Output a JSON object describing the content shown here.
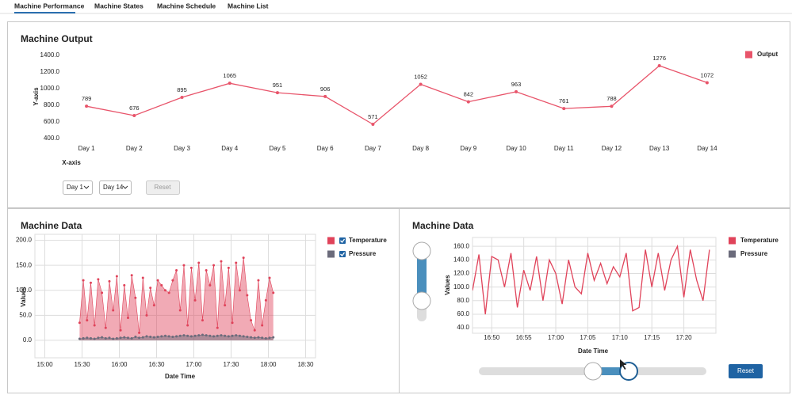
{
  "tabs": [
    "Machine Performance",
    "Machine States",
    "Machine Schedule",
    "Machine List"
  ],
  "controls": {
    "start": "Day 1",
    "end": "Day 14",
    "reset": "Reset",
    "data_reset": "Reset"
  },
  "chart_data": [
    {
      "type": "line",
      "title": "Machine Output",
      "x_label": "X-axis",
      "y_label": "Y-axis",
      "categories": [
        "Day 1",
        "Day 2",
        "Day 3",
        "Day 4",
        "Day 5",
        "Day 6",
        "Day 7",
        "Day 8",
        "Day 9",
        "Day 10",
        "Day 11",
        "Day 12",
        "Day 13",
        "Day 14"
      ],
      "series": [
        {
          "name": "Output",
          "color": "#e8546a",
          "values": [
            789,
            676,
            895,
            1065,
            951,
            906,
            571,
            1052,
            842,
            963,
            761,
            788,
            1276,
            1072
          ]
        }
      ],
      "ylim": [
        400,
        1400
      ],
      "yticks": [
        {
          "value": 400,
          "label": "400.0"
        },
        {
          "value": 600,
          "label": "600.0"
        },
        {
          "value": 800,
          "label": "800.0"
        },
        {
          "value": 1000,
          "label": "1000.0"
        },
        {
          "value": 1200,
          "label": "1200.0"
        },
        {
          "value": 1400,
          "label": "1400.0"
        }
      ],
      "grid": false,
      "data_labels": true
    },
    {
      "type": "area",
      "title": "Machine Data",
      "x_label": "Date Time",
      "y_label": "Values",
      "x": [
        "15:28",
        "15:31",
        "15:34",
        "15:37",
        "15:40",
        "15:43",
        "15:46",
        "15:49",
        "15:52",
        "15:55",
        "15:58",
        "16:01",
        "16:04",
        "16:07",
        "16:10",
        "16:13",
        "16:16",
        "16:19",
        "16:22",
        "16:25",
        "16:28",
        "16:31",
        "16:34",
        "16:37",
        "16:40",
        "16:43",
        "16:46",
        "16:49",
        "16:52",
        "16:55",
        "16:58",
        "17:01",
        "17:04",
        "17:07",
        "17:10",
        "17:13",
        "17:16",
        "17:19",
        "17:22",
        "17:25",
        "17:28",
        "17:31",
        "17:34",
        "17:37",
        "17:40",
        "17:43",
        "17:46",
        "17:49",
        "17:52",
        "17:55",
        "17:58",
        "18:01",
        "18:04"
      ],
      "series": [
        {
          "name": "Temperature",
          "color": "#e0435a",
          "values": [
            35,
            120,
            40,
            115,
            30,
            122,
            95,
            25,
            118,
            60,
            128,
            20,
            110,
            45,
            130,
            85,
            15,
            125,
            50,
            105,
            70,
            120,
            110,
            100,
            95,
            120,
            140,
            60,
            150,
            30,
            145,
            80,
            155,
            40,
            140,
            110,
            150,
            25,
            158,
            70,
            145,
            35,
            155,
            100,
            165,
            90,
            40,
            20,
            120,
            30,
            80,
            125,
            95
          ]
        },
        {
          "name": "Pressure",
          "color": "#6b6b7b",
          "values": [
            3,
            4,
            5,
            4,
            3,
            5,
            6,
            4,
            5,
            3,
            4,
            5,
            6,
            5,
            4,
            7,
            5,
            6,
            8,
            7,
            6,
            7,
            8,
            9,
            8,
            7,
            8,
            9,
            10,
            9,
            8,
            9,
            10,
            11,
            10,
            9,
            8,
            9,
            10,
            9,
            8,
            9,
            10,
            9,
            8,
            7,
            6,
            5,
            6,
            5,
            4,
            5,
            6
          ]
        }
      ],
      "xlim": [
        "14:52",
        "18:38"
      ],
      "xticks": [
        "15:00",
        "15:30",
        "16:00",
        "16:30",
        "17:00",
        "17:30",
        "18:00",
        "18:30"
      ],
      "ylim": [
        -35,
        212
      ],
      "yticks": [
        {
          "value": 0,
          "label": "0.0"
        },
        {
          "value": 50,
          "label": "50.0"
        },
        {
          "value": 100,
          "label": "100.0"
        },
        {
          "value": 150,
          "label": "150.0"
        },
        {
          "value": 200,
          "label": "200.0"
        }
      ],
      "grid": true
    },
    {
      "type": "line",
      "title": "Machine Data",
      "x_label": "Date Time",
      "y_label": "Values",
      "x": [
        "16:47",
        "16:48",
        "16:49",
        "16:50",
        "16:51",
        "16:52",
        "16:53",
        "16:54",
        "16:55",
        "16:56",
        "16:57",
        "16:58",
        "16:59",
        "17:00",
        "17:01",
        "17:02",
        "17:03",
        "17:04",
        "17:05",
        "17:06",
        "17:07",
        "17:08",
        "17:09",
        "17:10",
        "17:11",
        "17:12",
        "17:13",
        "17:14",
        "17:15",
        "17:16",
        "17:17",
        "17:18",
        "17:19",
        "17:20",
        "17:21",
        "17:22",
        "17:23",
        "17:24"
      ],
      "series": [
        {
          "name": "Temperature",
          "color": "#e0435a",
          "values": [
            95,
            148,
            60,
            145,
            140,
            100,
            150,
            70,
            125,
            95,
            145,
            80,
            140,
            120,
            75,
            140,
            100,
            90,
            150,
            110,
            135,
            105,
            130,
            115,
            150,
            65,
            70,
            155,
            100,
            150,
            95,
            140,
            160,
            85,
            155,
            110,
            80,
            155
          ]
        },
        {
          "name": "Pressure",
          "color": "#6b6b7b",
          "values": [
            5,
            5,
            6,
            5,
            5,
            6,
            6,
            5,
            5,
            6,
            5,
            6,
            6,
            5,
            5,
            6,
            6,
            5,
            6,
            5,
            6,
            5,
            6,
            6,
            5,
            5,
            6,
            6,
            5,
            6,
            5,
            6,
            6,
            5,
            6,
            5,
            5,
            6
          ]
        }
      ],
      "xlim": [
        "16:47",
        "17:25"
      ],
      "xticks": [
        "16:50",
        "16:55",
        "17:00",
        "17:05",
        "17:10",
        "17:15",
        "17:20"
      ],
      "ylim": [
        32,
        173
      ],
      "yticks": [
        {
          "value": 40,
          "label": "40.0"
        },
        {
          "value": 60,
          "label": "60.0"
        },
        {
          "value": 80,
          "label": "80.0"
        },
        {
          "value": 100,
          "label": "100.0"
        },
        {
          "value": 120,
          "label": "120.0"
        },
        {
          "value": 140,
          "label": "140.0"
        },
        {
          "value": 160,
          "label": "160.0"
        }
      ],
      "grid": true
    }
  ]
}
